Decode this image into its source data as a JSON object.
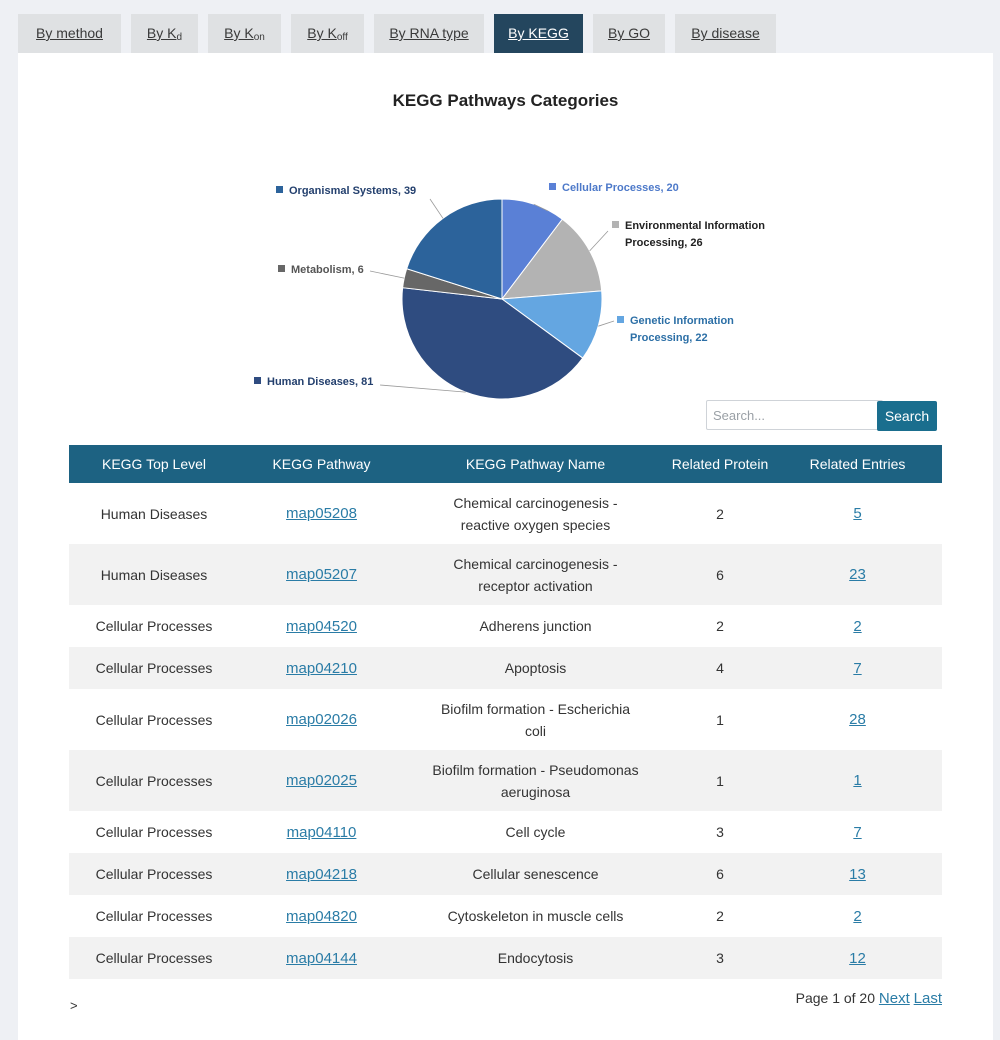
{
  "tabs": [
    {
      "label": "By method",
      "sub": ""
    },
    {
      "label": "By K",
      "sub": "d"
    },
    {
      "label": "By K",
      "sub": "on"
    },
    {
      "label": "By K",
      "sub": "off"
    },
    {
      "label": "By RNA type",
      "sub": ""
    },
    {
      "label": "By KEGG",
      "sub": ""
    },
    {
      "label": "By GO",
      "sub": ""
    },
    {
      "label": "By disease",
      "sub": ""
    }
  ],
  "active_tab": "By KEGG",
  "chart_data": {
    "type": "pie",
    "title": "KEGG Pathways Categories",
    "slices": [
      {
        "name": "Cellular Processes",
        "value": 20,
        "color": "#5a80d6",
        "label": "Cellular Processes, 20"
      },
      {
        "name": "Environmental Information Processing",
        "value": 26,
        "color": "#b3b3b3",
        "label": "Environmental Information Processing, 26"
      },
      {
        "name": "Genetic Information Processing",
        "value": 22,
        "color": "#64a6e1",
        "label": "Genetic Information Processing, 22"
      },
      {
        "name": "Human Diseases",
        "value": 81,
        "color": "#2f4c80",
        "label": "Human Diseases, 81"
      },
      {
        "name": "Metabolism",
        "value": 6,
        "color": "#676767",
        "label": "Metabolism, 6"
      },
      {
        "name": "Organismal Systems",
        "value": 39,
        "color": "#2c639b",
        "label": "Organismal Systems, 39"
      }
    ]
  },
  "search": {
    "placeholder": "Search...",
    "button": "Search"
  },
  "table": {
    "headers": [
      "KEGG Top Level",
      "KEGG Pathway",
      "KEGG Pathway Name",
      "Related Protein",
      "Related Entries"
    ],
    "rows": [
      {
        "level": "Human Diseases",
        "pathway": "map05208",
        "name1": "Chemical carcinogenesis -",
        "name2": "reactive oxygen species",
        "protein": "2",
        "entries": "5"
      },
      {
        "level": "Human Diseases",
        "pathway": "map05207",
        "name1": "Chemical carcinogenesis -",
        "name2": "receptor activation",
        "protein": "6",
        "entries": "23"
      },
      {
        "level": "Cellular Processes",
        "pathway": "map04520",
        "name1": "Adherens junction",
        "name2": "",
        "protein": "2",
        "entries": "2"
      },
      {
        "level": "Cellular Processes",
        "pathway": "map04210",
        "name1": "Apoptosis",
        "name2": "",
        "protein": "4",
        "entries": "7"
      },
      {
        "level": "Cellular Processes",
        "pathway": "map02026",
        "name1": "Biofilm formation - Escherichia",
        "name2": "coli",
        "protein": "1",
        "entries": "28"
      },
      {
        "level": "Cellular Processes",
        "pathway": "map02025",
        "name1": "Biofilm formation - Pseudomonas",
        "name2": "aeruginosa",
        "protein": "1",
        "entries": "1"
      },
      {
        "level": "Cellular Processes",
        "pathway": "map04110",
        "name1": "Cell cycle",
        "name2": "",
        "protein": "3",
        "entries": "7"
      },
      {
        "level": "Cellular Processes",
        "pathway": "map04218",
        "name1": "Cellular senescence",
        "name2": "",
        "protein": "6",
        "entries": "13"
      },
      {
        "level": "Cellular Processes",
        "pathway": "map04820",
        "name1": "Cytoskeleton in muscle cells",
        "name2": "",
        "protein": "2",
        "entries": "2"
      },
      {
        "level": "Cellular Processes",
        "pathway": "map04144",
        "name1": "Endocytosis",
        "name2": "",
        "protein": "3",
        "entries": "12"
      }
    ]
  },
  "pager": {
    "text": "Page 1 of 20",
    "next": "Next",
    "last": "Last"
  },
  "footer_glyph": ">"
}
